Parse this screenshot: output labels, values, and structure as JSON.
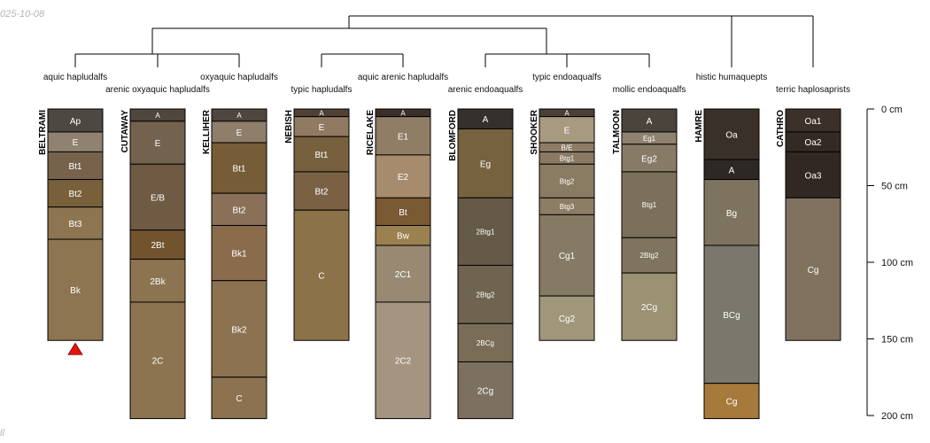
{
  "stamps": {
    "date": "025-10-08",
    "corner": "ll"
  },
  "colors": {
    "tree": "#000000",
    "horizon_border": "#000000",
    "marker": "#e8140c",
    "label": "#ffffff"
  },
  "chart_data": {
    "type": "soil-profile-sketch",
    "depth_unit": "cm",
    "depth_ticks": [
      {
        "depth": 0,
        "label": "0 cm"
      },
      {
        "depth": 50,
        "label": "50 cm"
      },
      {
        "depth": 100,
        "label": "100 cm"
      },
      {
        "depth": 150,
        "label": "150 cm"
      },
      {
        "depth": 200,
        "label": "200 cm"
      }
    ],
    "profiles": [
      {
        "id": "beltrami",
        "name": "BELTRAMI",
        "taxon": "aquic hapludalfs",
        "marker": true,
        "horizons": [
          {
            "name": "Ap",
            "top": 0,
            "bottom": 15,
            "color": "#4e4842"
          },
          {
            "name": "E",
            "top": 15,
            "bottom": 28,
            "color": "#8f8270"
          },
          {
            "name": "Bt1",
            "top": 28,
            "bottom": 46,
            "color": "#77634b"
          },
          {
            "name": "Bt2",
            "top": 46,
            "bottom": 64,
            "color": "#77603a"
          },
          {
            "name": "Bt3",
            "top": 64,
            "bottom": 85,
            "color": "#8c7550"
          },
          {
            "name": "Bk",
            "top": 85,
            "bottom": 151,
            "color": "#8c7550"
          }
        ]
      },
      {
        "id": "cutaway",
        "name": "CUTAWAY",
        "taxon": "arenic oxyaquic hapludalfs",
        "horizons": [
          {
            "name": "A",
            "top": 0,
            "bottom": 8,
            "color": "#4f463d"
          },
          {
            "name": "E",
            "top": 8,
            "bottom": 36,
            "color": "#73624e"
          },
          {
            "name": "E/B",
            "top": 36,
            "bottom": 79,
            "color": "#6f5a44"
          },
          {
            "name": "2Bt",
            "top": 79,
            "bottom": 98,
            "color": "#71532e"
          },
          {
            "name": "2Bk",
            "top": 98,
            "bottom": 126,
            "color": "#8c7450"
          },
          {
            "name": "2C",
            "top": 126,
            "bottom": 202,
            "color": "#8c7450"
          }
        ]
      },
      {
        "id": "kelliher",
        "name": "KELLIHER",
        "taxon": "oxyaquic hapludalfs",
        "horizons": [
          {
            "name": "A",
            "top": 0,
            "bottom": 8,
            "color": "#4e463f"
          },
          {
            "name": "E",
            "top": 8,
            "bottom": 22,
            "color": "#8e7e6b"
          },
          {
            "name": "Bt1",
            "top": 22,
            "bottom": 55,
            "color": "#775c38"
          },
          {
            "name": "Bt2",
            "top": 55,
            "bottom": 76,
            "color": "#8a7058"
          },
          {
            "name": "Bk1",
            "top": 76,
            "bottom": 112,
            "color": "#8a6c4c"
          },
          {
            "name": "Bk2",
            "top": 112,
            "bottom": 175,
            "color": "#8c7250"
          },
          {
            "name": "C",
            "top": 175,
            "bottom": 202,
            "color": "#8c7250"
          }
        ]
      },
      {
        "id": "nebish",
        "name": "NEBISH",
        "taxon": "typic hapludalfs",
        "horizons": [
          {
            "name": "A",
            "top": 0,
            "bottom": 5,
            "color": "#4f4235"
          },
          {
            "name": "E",
            "top": 5,
            "bottom": 18,
            "color": "#907a62"
          },
          {
            "name": "Bt1",
            "top": 18,
            "bottom": 41,
            "color": "#77603e"
          },
          {
            "name": "Bt2",
            "top": 41,
            "bottom": 66,
            "color": "#7b6143"
          },
          {
            "name": "C",
            "top": 66,
            "bottom": 151,
            "color": "#8c7248"
          }
        ]
      },
      {
        "id": "ricelake",
        "name": "RICELAKE",
        "taxon": "aquic arenic hapludalfs",
        "horizons": [
          {
            "name": "A",
            "top": 0,
            "bottom": 5,
            "color": "#3b3029"
          },
          {
            "name": "E1",
            "top": 5,
            "bottom": 30,
            "color": "#8f7d66"
          },
          {
            "name": "E2",
            "top": 30,
            "bottom": 58,
            "color": "#a68c6c"
          },
          {
            "name": "Bt",
            "top": 58,
            "bottom": 76,
            "color": "#7a5a33"
          },
          {
            "name": "Bw",
            "top": 76,
            "bottom": 89,
            "color": "#9b8050"
          },
          {
            "name": "2C1",
            "top": 89,
            "bottom": 126,
            "color": "#998973"
          },
          {
            "name": "2C2",
            "top": 126,
            "bottom": 202,
            "color": "#a49480"
          }
        ]
      },
      {
        "id": "blomford",
        "name": "BLOMFORD",
        "taxon": "arenic endoaqualfs",
        "horizons": [
          {
            "name": "A",
            "top": 0,
            "bottom": 13,
            "color": "#35302b"
          },
          {
            "name": "Eg",
            "top": 13,
            "bottom": 58,
            "color": "#76623f"
          },
          {
            "name": "2Btg1",
            "top": 58,
            "bottom": 102,
            "color": "#655a47"
          },
          {
            "name": "2Btg2",
            "top": 102,
            "bottom": 140,
            "color": "#6f6450"
          },
          {
            "name": "2BCg",
            "top": 140,
            "bottom": 165,
            "color": "#7a6d57"
          },
          {
            "name": "2Cg",
            "top": 165,
            "bottom": 202,
            "color": "#7c7160"
          }
        ]
      },
      {
        "id": "shooker",
        "name": "SHOOKER",
        "taxon": "typic endoaqualfs",
        "horizons": [
          {
            "name": "A",
            "top": 0,
            "bottom": 5,
            "color": "#4a4037"
          },
          {
            "name": "E",
            "top": 5,
            "bottom": 22,
            "color": "#a89a80"
          },
          {
            "name": "B/E",
            "top": 22,
            "bottom": 28,
            "color": "#8e7c66"
          },
          {
            "name": "Btg1",
            "top": 28,
            "bottom": 36,
            "color": "#8b7a63"
          },
          {
            "name": "Btg2",
            "top": 36,
            "bottom": 58,
            "color": "#8a7b63"
          },
          {
            "name": "Btg3",
            "top": 58,
            "bottom": 69,
            "color": "#8d7d65"
          },
          {
            "name": "Cg1",
            "top": 69,
            "bottom": 122,
            "color": "#857a63"
          },
          {
            "name": "Cg2",
            "top": 122,
            "bottom": 151,
            "color": "#a0977b"
          }
        ]
      },
      {
        "id": "talmoon",
        "name": "TALMOON",
        "taxon": "mollic endoaqualfs",
        "horizons": [
          {
            "name": "A",
            "top": 0,
            "bottom": 15,
            "color": "#4b443d"
          },
          {
            "name": "Eg1",
            "top": 15,
            "bottom": 23,
            "color": "#8f8270"
          },
          {
            "name": "Eg2",
            "top": 23,
            "bottom": 41,
            "color": "#877a66"
          },
          {
            "name": "Btg1",
            "top": 41,
            "bottom": 84,
            "color": "#7b705a"
          },
          {
            "name": "2Btg2",
            "top": 84,
            "bottom": 107,
            "color": "#7f745d"
          },
          {
            "name": "2Cg",
            "top": 107,
            "bottom": 151,
            "color": "#9b9173"
          }
        ]
      },
      {
        "id": "hamre",
        "name": "HAMRE",
        "taxon": "histic humaquepts",
        "horizons": [
          {
            "name": "Oa",
            "top": 0,
            "bottom": 33,
            "color": "#393029"
          },
          {
            "name": "A",
            "top": 33,
            "bottom": 46,
            "color": "#2d2824"
          },
          {
            "name": "Bg",
            "top": 46,
            "bottom": 89,
            "color": "#7e735f"
          },
          {
            "name": "BCg",
            "top": 89,
            "bottom": 179,
            "color": "#7a786c"
          },
          {
            "name": "Cg",
            "top": 179,
            "bottom": 202,
            "color": "#a67a3a"
          }
        ]
      },
      {
        "id": "cathro",
        "name": "CATHRO",
        "taxon": "terric haplosaprists",
        "horizons": [
          {
            "name": "Oa1",
            "top": 0,
            "bottom": 15,
            "color": "#3b302a"
          },
          {
            "name": "Oa2",
            "top": 15,
            "bottom": 28,
            "color": "#342a25"
          },
          {
            "name": "Oa3",
            "top": 28,
            "bottom": 58,
            "color": "#322823"
          },
          {
            "name": "Cg",
            "top": 58,
            "bottom": 151,
            "color": "#80725f"
          }
        ]
      }
    ]
  }
}
